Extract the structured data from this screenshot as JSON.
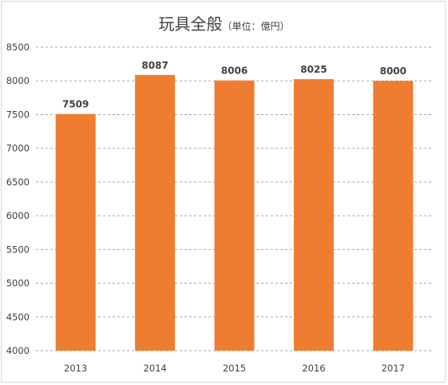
{
  "chart_data": {
    "type": "bar",
    "title": "玩具全般",
    "subtitle": "（単位：億円）",
    "categories": [
      "2013",
      "2014",
      "2015",
      "2016",
      "2017"
    ],
    "values": [
      7509,
      8087,
      8006,
      8025,
      8000
    ],
    "ylim": [
      4000,
      8500
    ],
    "yticks": [
      4000,
      4500,
      5000,
      5500,
      6000,
      6500,
      7000,
      7500,
      8000,
      8500
    ],
    "grid": true,
    "bar_color": "#ef7d31",
    "xlabel": "",
    "ylabel": ""
  }
}
